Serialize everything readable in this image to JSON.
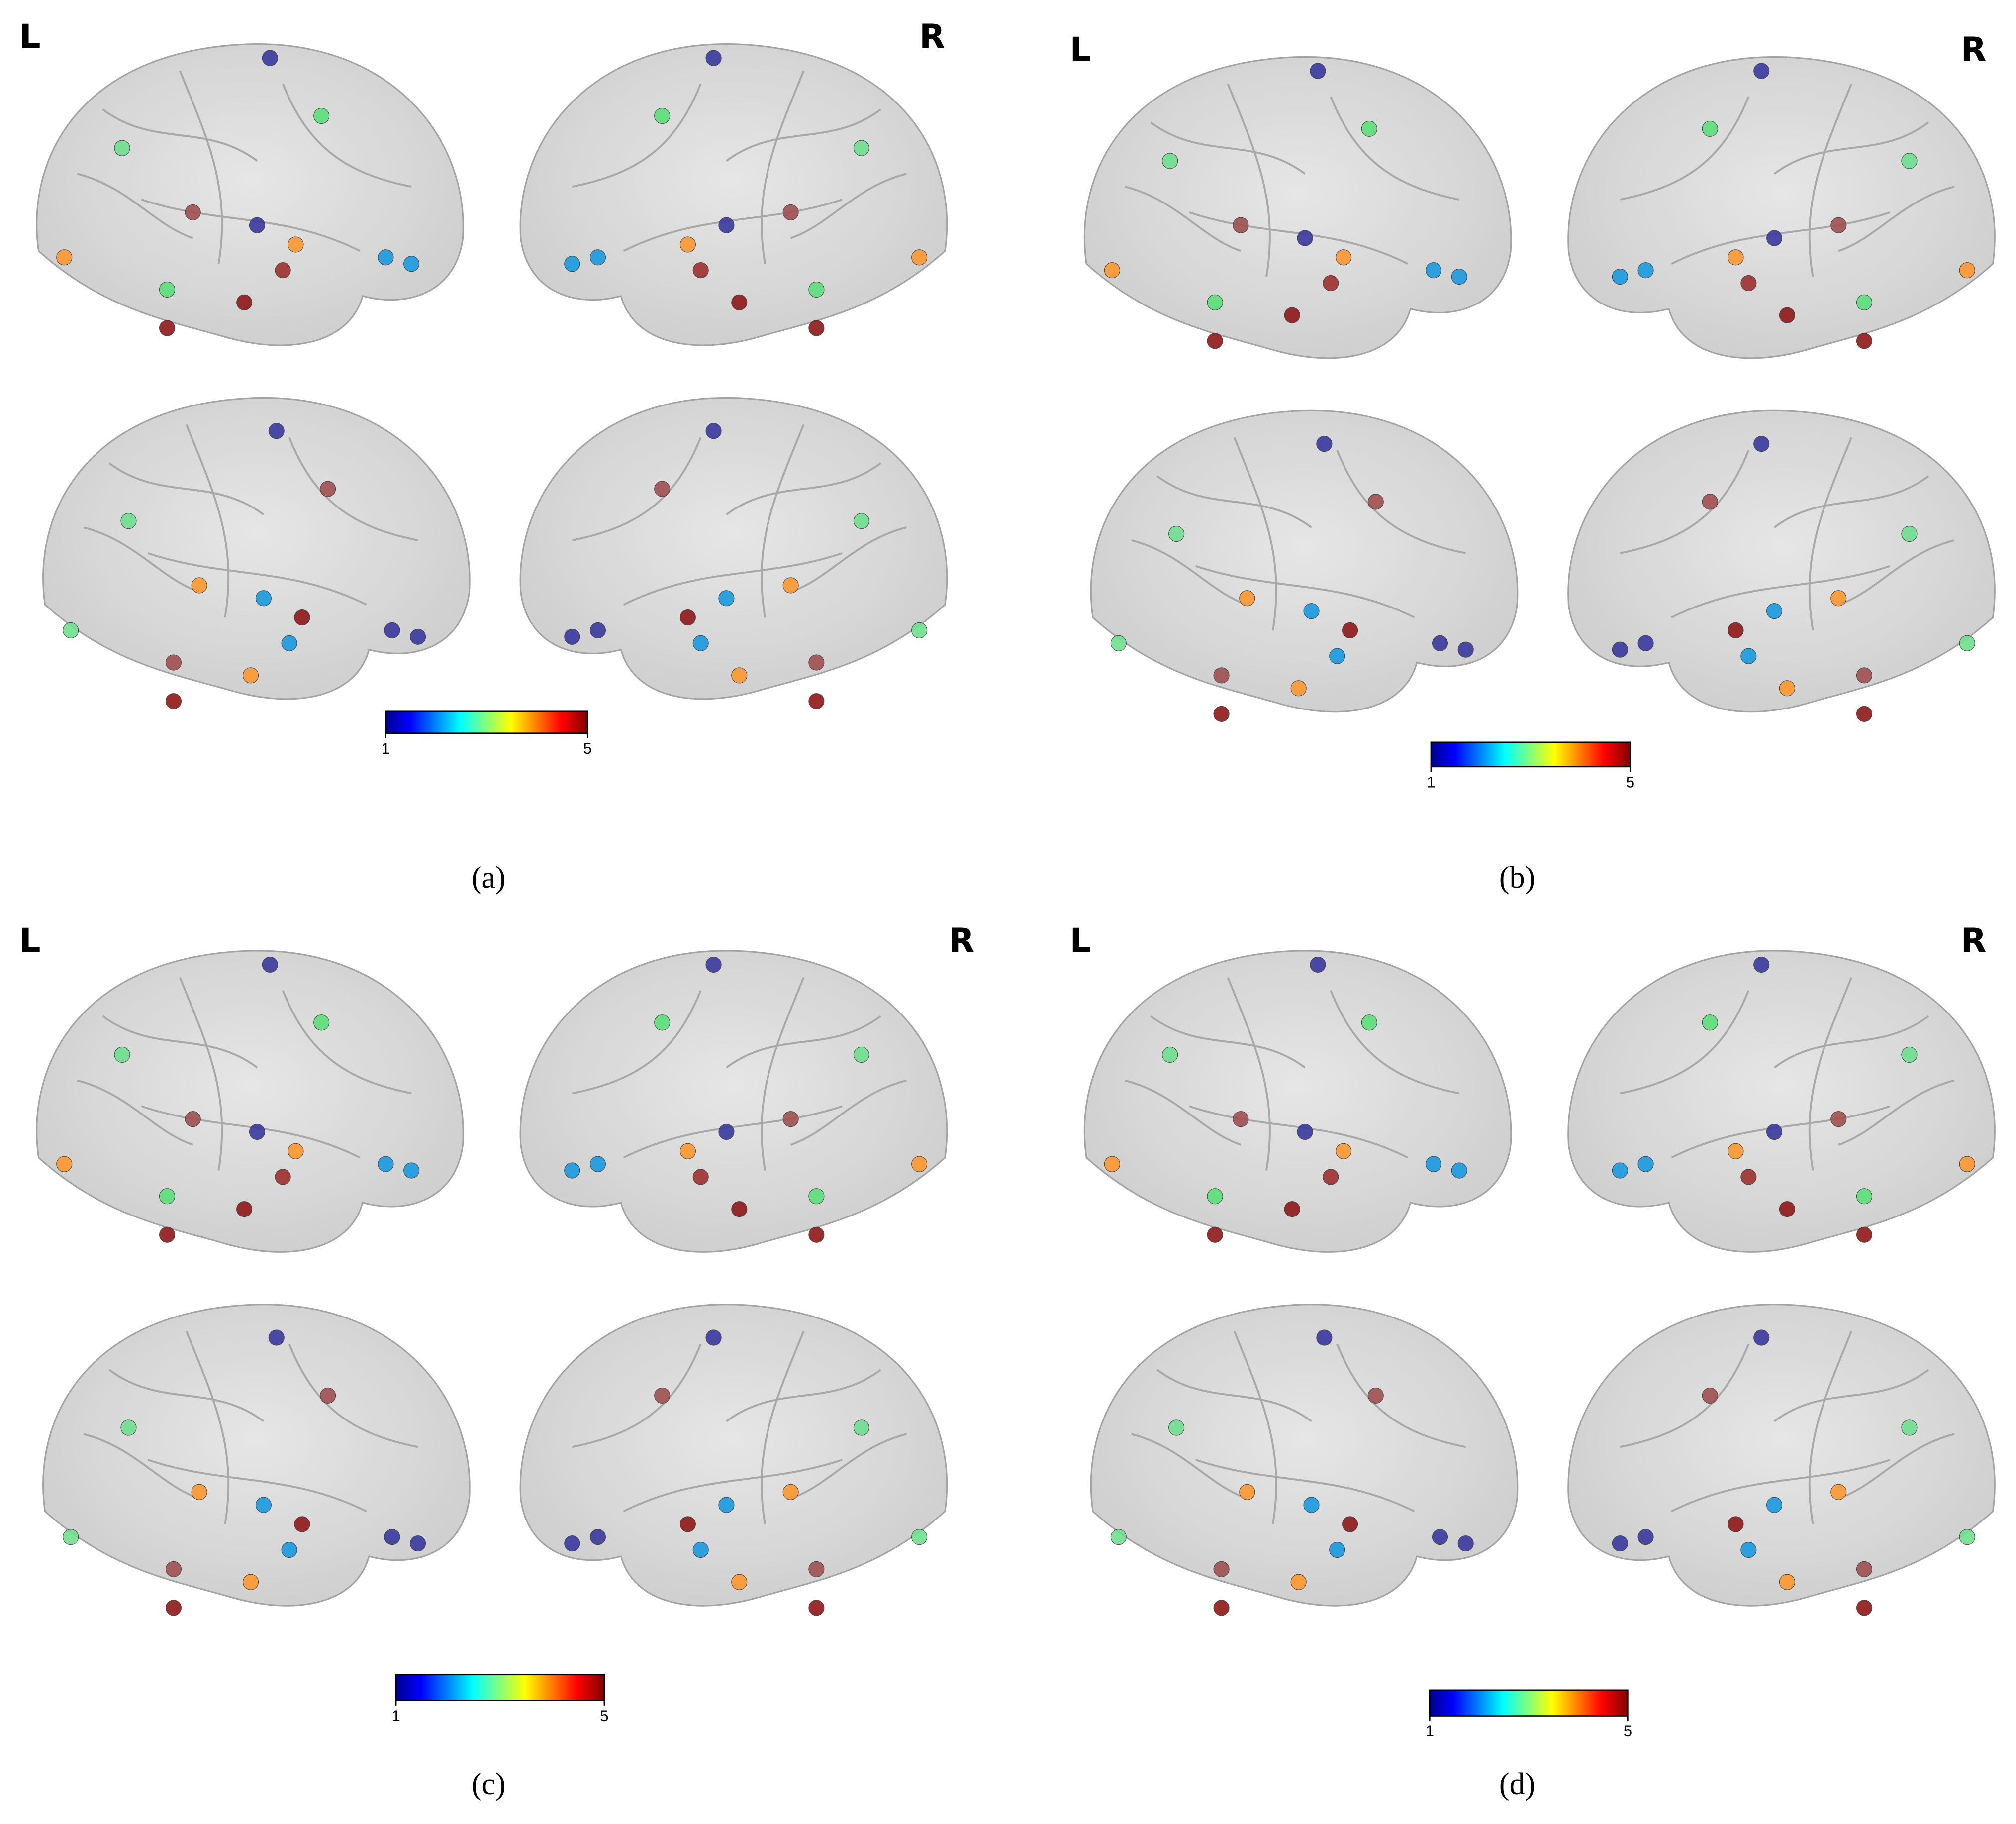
{
  "panels": [
    {
      "left_label": "L",
      "right_label": "R",
      "colorbar": {
        "ticks": [
          1,
          5
        ]
      },
      "caption": "(a)"
    },
    {
      "left_label": "L",
      "right_label": "R",
      "colorbar": {
        "ticks": [
          1,
          5
        ]
      },
      "caption": "(b)"
    },
    {
      "left_label": "L",
      "right_label": "R",
      "colorbar": {
        "ticks": [
          1,
          5
        ]
      },
      "caption": "(c)"
    },
    {
      "left_label": "L",
      "right_label": "R",
      "colorbar": {
        "ticks": [
          1,
          5
        ]
      },
      "caption": "(d)"
    }
  ]
}
